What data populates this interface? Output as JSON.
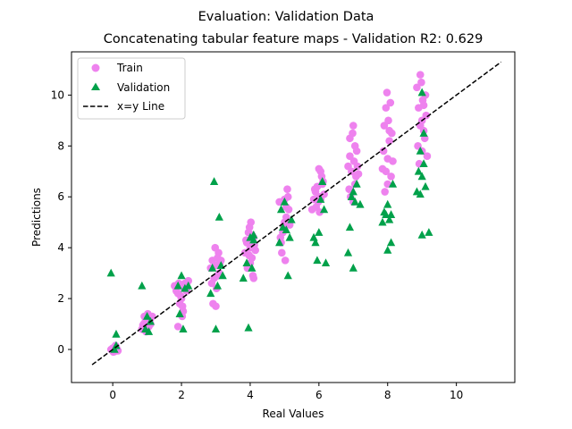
{
  "chart_data": {
    "type": "scatter",
    "title": "Evaluation: Validation Data",
    "subtitle": "Concatenating tabular feature maps - Validation R2: 0.629",
    "xlabel": "Real Values",
    "ylabel": "Predictions",
    "xlim": [
      -1.2,
      11.7
    ],
    "ylim": [
      -1.3,
      11.7
    ],
    "xticks": [
      0,
      2,
      4,
      6,
      8,
      10
    ],
    "yticks": [
      0,
      2,
      4,
      6,
      8,
      10
    ],
    "grid": false,
    "legend_position": "top-left",
    "series": [
      {
        "name": "Train",
        "marker": "circle",
        "color": "#ee82ee",
        "points": [
          [
            0.0,
            0.05
          ],
          [
            0.05,
            -0.08
          ],
          [
            0.1,
            0.1
          ],
          [
            -0.05,
            0.0
          ],
          [
            0.15,
            -0.05
          ],
          [
            0.08,
            0.15
          ],
          [
            0.02,
            -0.1
          ],
          [
            0.12,
            0.02
          ],
          [
            0.85,
            0.8
          ],
          [
            0.9,
            1.0
          ],
          [
            0.95,
            1.1
          ],
          [
            1.0,
            1.2
          ],
          [
            1.05,
            0.9
          ],
          [
            0.92,
            1.3
          ],
          [
            1.1,
            1.0
          ],
          [
            0.88,
            0.95
          ],
          [
            1.02,
            1.4
          ],
          [
            0.97,
            0.7
          ],
          [
            1.08,
            1.15
          ],
          [
            1.15,
            1.3
          ],
          [
            0.93,
            0.9
          ],
          [
            1.8,
            2.5
          ],
          [
            1.9,
            2.2
          ],
          [
            1.95,
            1.8
          ],
          [
            2.0,
            2.0
          ],
          [
            2.05,
            1.5
          ],
          [
            2.1,
            2.6
          ],
          [
            1.85,
            2.3
          ],
          [
            2.02,
            1.3
          ],
          [
            2.08,
            2.4
          ],
          [
            1.98,
            2.1
          ],
          [
            1.92,
            2.6
          ],
          [
            2.15,
            2.3
          ],
          [
            2.2,
            2.7
          ],
          [
            1.9,
            0.9
          ],
          [
            2.03,
            1.7
          ],
          [
            2.85,
            3.2
          ],
          [
            2.9,
            3.5
          ],
          [
            2.95,
            2.8
          ],
          [
            3.0,
            3.3
          ],
          [
            3.05,
            3.6
          ],
          [
            3.1,
            3.0
          ],
          [
            2.92,
            1.8
          ],
          [
            3.02,
            2.4
          ],
          [
            3.08,
            3.8
          ],
          [
            2.98,
            4.0
          ],
          [
            3.12,
            3.4
          ],
          [
            2.88,
            2.6
          ],
          [
            3.0,
            1.7
          ],
          [
            3.15,
            3.5
          ],
          [
            3.05,
            2.9
          ],
          [
            3.85,
            3.8
          ],
          [
            3.9,
            4.2
          ],
          [
            3.95,
            4.6
          ],
          [
            4.0,
            4.0
          ],
          [
            4.05,
            3.6
          ],
          [
            4.1,
            4.4
          ],
          [
            3.92,
            3.2
          ],
          [
            4.02,
            5.0
          ],
          [
            4.08,
            2.9
          ],
          [
            3.98,
            4.8
          ],
          [
            4.12,
            4.1
          ],
          [
            3.88,
            4.3
          ],
          [
            4.0,
            3.4
          ],
          [
            4.15,
            3.9
          ],
          [
            4.05,
            4.5
          ],
          [
            4.1,
            2.8
          ],
          [
            3.97,
            3.7
          ],
          [
            4.85,
            5.8
          ],
          [
            4.9,
            4.2
          ],
          [
            4.95,
            4.6
          ],
          [
            5.0,
            5.0
          ],
          [
            5.05,
            5.2
          ],
          [
            5.1,
            6.0
          ],
          [
            4.92,
            3.8
          ],
          [
            5.02,
            3.5
          ],
          [
            5.08,
            6.3
          ],
          [
            4.98,
            4.8
          ],
          [
            5.12,
            5.5
          ],
          [
            4.88,
            4.4
          ],
          [
            5.0,
            5.9
          ],
          [
            5.15,
            4.9
          ],
          [
            5.05,
            5.6
          ],
          [
            5.85,
            5.9
          ],
          [
            5.9,
            6.2
          ],
          [
            5.95,
            6.4
          ],
          [
            6.0,
            6.0
          ],
          [
            6.05,
            7.0
          ],
          [
            6.1,
            6.5
          ],
          [
            5.92,
            5.6
          ],
          [
            6.02,
            5.4
          ],
          [
            6.08,
            6.8
          ],
          [
            5.98,
            5.8
          ],
          [
            6.12,
            6.6
          ],
          [
            5.88,
            6.3
          ],
          [
            6.0,
            7.1
          ],
          [
            6.15,
            6.1
          ],
          [
            6.05,
            5.9
          ],
          [
            5.8,
            5.5
          ],
          [
            6.85,
            7.2
          ],
          [
            6.9,
            8.3
          ],
          [
            6.95,
            7.0
          ],
          [
            7.0,
            8.8
          ],
          [
            7.05,
            6.5
          ],
          [
            7.1,
            7.8
          ],
          [
            6.92,
            6.0
          ],
          [
            7.02,
            7.4
          ],
          [
            7.08,
            6.8
          ],
          [
            6.98,
            8.5
          ],
          [
            7.12,
            7.2
          ],
          [
            6.88,
            6.3
          ],
          [
            7.0,
            5.8
          ],
          [
            7.15,
            6.9
          ],
          [
            7.05,
            8.0
          ],
          [
            6.9,
            7.6
          ],
          [
            7.85,
            7.1
          ],
          [
            7.9,
            8.8
          ],
          [
            7.95,
            9.5
          ],
          [
            8.0,
            7.5
          ],
          [
            8.05,
            8.2
          ],
          [
            8.1,
            6.8
          ],
          [
            7.92,
            6.2
          ],
          [
            8.02,
            9.0
          ],
          [
            8.08,
            9.7
          ],
          [
            7.98,
            10.1
          ],
          [
            8.12,
            8.5
          ],
          [
            7.88,
            7.8
          ],
          [
            8.0,
            6.5
          ],
          [
            8.15,
            7.4
          ],
          [
            8.05,
            8.6
          ],
          [
            7.95,
            7.0
          ],
          [
            8.85,
            10.3
          ],
          [
            8.9,
            9.5
          ],
          [
            8.95,
            10.8
          ],
          [
            9.0,
            9.0
          ],
          [
            9.05,
            8.6
          ],
          [
            9.1,
            10.0
          ],
          [
            8.92,
            7.3
          ],
          [
            9.02,
            9.8
          ],
          [
            9.08,
            8.3
          ],
          [
            8.98,
            10.5
          ],
          [
            9.12,
            9.2
          ],
          [
            8.88,
            8.0
          ],
          [
            9.0,
            7.8
          ],
          [
            9.15,
            7.6
          ],
          [
            9.05,
            9.6
          ],
          [
            8.95,
            8.8
          ]
        ]
      },
      {
        "name": "Validation",
        "marker": "triangle",
        "color": "#00a14a",
        "points": [
          [
            -0.05,
            3.0
          ],
          [
            0.1,
            0.6
          ],
          [
            0.05,
            0.0
          ],
          [
            0.1,
            0.15
          ],
          [
            0.85,
            2.5
          ],
          [
            0.95,
            0.8
          ],
          [
            1.05,
            0.7
          ],
          [
            1.1,
            1.1
          ],
          [
            1.0,
            1.3
          ],
          [
            1.9,
            2.5
          ],
          [
            2.0,
            2.9
          ],
          [
            2.05,
            0.8
          ],
          [
            1.95,
            1.4
          ],
          [
            2.1,
            2.4
          ],
          [
            2.2,
            2.5
          ],
          [
            2.95,
            6.6
          ],
          [
            3.1,
            5.2
          ],
          [
            3.0,
            0.8
          ],
          [
            3.05,
            2.5
          ],
          [
            2.9,
            3.2
          ],
          [
            3.15,
            3.3
          ],
          [
            3.2,
            2.9
          ],
          [
            2.85,
            2.2
          ],
          [
            3.95,
            0.85
          ],
          [
            3.9,
            3.4
          ],
          [
            4.0,
            4.4
          ],
          [
            4.05,
            3.2
          ],
          [
            4.1,
            4.3
          ],
          [
            4.1,
            4.5
          ],
          [
            3.8,
            2.8
          ],
          [
            4.9,
            5.5
          ],
          [
            5.0,
            5.8
          ],
          [
            5.1,
            2.9
          ],
          [
            4.95,
            4.8
          ],
          [
            5.05,
            4.7
          ],
          [
            5.15,
            4.4
          ],
          [
            4.85,
            4.2
          ],
          [
            5.2,
            5.1
          ],
          [
            5.9,
            4.2
          ],
          [
            5.95,
            3.5
          ],
          [
            6.0,
            4.6
          ],
          [
            6.1,
            6.6
          ],
          [
            6.15,
            5.5
          ],
          [
            6.2,
            3.4
          ],
          [
            6.05,
            5.9
          ],
          [
            5.85,
            4.4
          ],
          [
            6.85,
            3.8
          ],
          [
            6.95,
            6.0
          ],
          [
            7.0,
            6.2
          ],
          [
            7.05,
            5.8
          ],
          [
            6.9,
            4.8
          ],
          [
            7.1,
            6.5
          ],
          [
            7.2,
            5.7
          ],
          [
            7.0,
            3.2
          ],
          [
            7.85,
            5.0
          ],
          [
            7.95,
            5.3
          ],
          [
            8.0,
            5.7
          ],
          [
            8.05,
            5.1
          ],
          [
            8.1,
            5.3
          ],
          [
            8.15,
            6.5
          ],
          [
            8.1,
            4.2
          ],
          [
            8.0,
            3.9
          ],
          [
            7.9,
            5.4
          ],
          [
            8.85,
            6.2
          ],
          [
            8.9,
            7.0
          ],
          [
            8.95,
            7.8
          ],
          [
            9.0,
            6.8
          ],
          [
            9.05,
            8.5
          ],
          [
            9.1,
            6.4
          ],
          [
            9.0,
            4.5
          ],
          [
            9.2,
            4.6
          ],
          [
            9.0,
            10.1
          ],
          [
            8.95,
            6.1
          ],
          [
            9.05,
            7.3
          ]
        ]
      },
      {
        "name": "x=y Line",
        "marker": "dashed-line",
        "color": "#000000",
        "points": [
          [
            -0.6,
            -0.6
          ],
          [
            11.3,
            11.3
          ]
        ]
      }
    ]
  }
}
